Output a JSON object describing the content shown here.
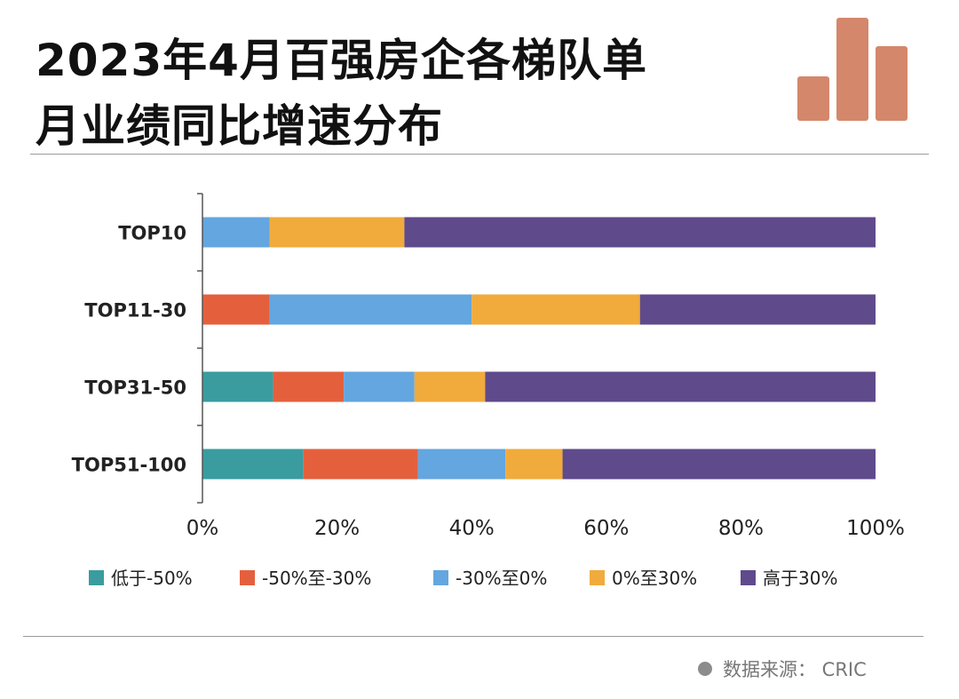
{
  "title_lines": [
    "2023年4月百强房企各梯队单",
    "月业绩同比增速分布"
  ],
  "source": "数据来源：  CRIC",
  "logo": {
    "icon": "bar-chart-logo-icon",
    "color": "#d4876b"
  },
  "chart_data": {
    "type": "bar",
    "orientation": "horizontal",
    "stacked": true,
    "title": "2023年4月百强房企各梯队单月业绩同比增速分布",
    "categories": [
      "TOP10",
      "TOP11-30",
      "TOP31-50",
      "TOP51-100"
    ],
    "xlim": [
      0,
      100
    ],
    "x_ticks": [
      "0%",
      "20%",
      "40%",
      "60%",
      "80%",
      "100%"
    ],
    "legend_position": "bottom",
    "grid": false,
    "series": [
      {
        "name": "低于-50%",
        "color": "#3a9c9f",
        "values": [
          0,
          0,
          10.5,
          15
        ]
      },
      {
        "name": "-50%至-30%",
        "color": "#e4603d",
        "values": [
          0,
          10,
          10.5,
          17
        ]
      },
      {
        "name": "-30%至0%",
        "color": "#64a6df",
        "values": [
          10,
          30,
          10.5,
          13
        ]
      },
      {
        "name": "0%至30%",
        "color": "#f0ab3c",
        "values": [
          20,
          25,
          10.5,
          8.5
        ]
      },
      {
        "name": "高于30%",
        "color": "#5f4a8b",
        "values": [
          70,
          35,
          58,
          46.5
        ]
      }
    ]
  }
}
